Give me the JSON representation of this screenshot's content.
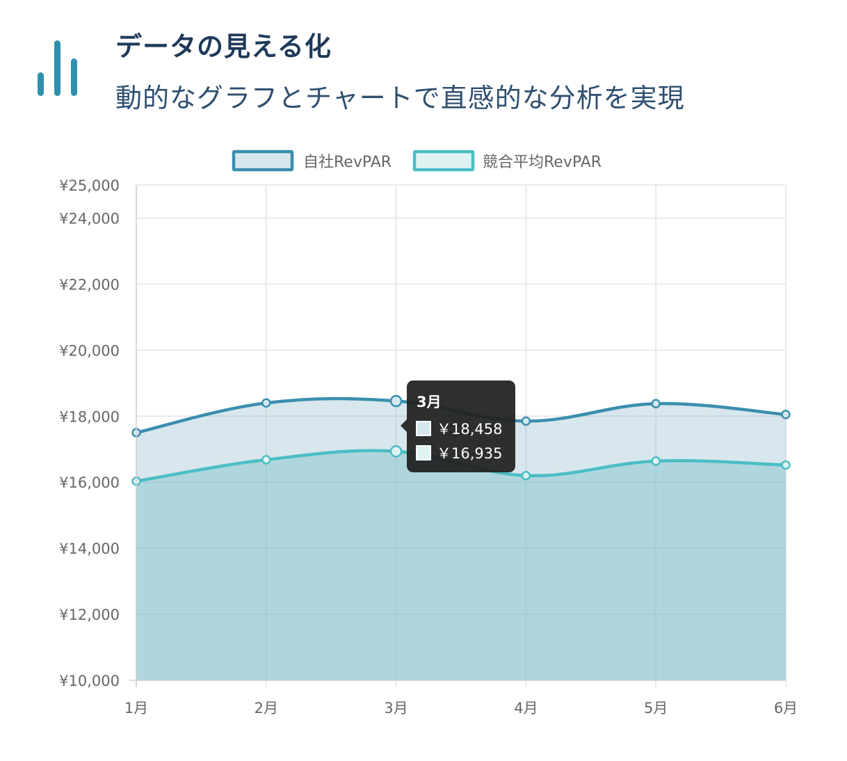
{
  "header": {
    "title": "データの見える化",
    "subtitle": "動的なグラフとチャートで直感的な分析を実現",
    "icon": "bar-chart-icon"
  },
  "colors": {
    "accent": "#2f8fae",
    "title": "#1f3a5a",
    "own_line": "#3a8fae",
    "competitor_line": "#4bbec4",
    "tooltip_bg": "#222222"
  },
  "chart_data": {
    "type": "area",
    "x": [
      "1月",
      "2月",
      "3月",
      "4月",
      "5月",
      "6月"
    ],
    "series": [
      {
        "name": "自社RevPAR",
        "values": [
          17500,
          18400,
          18458,
          17850,
          18380,
          18050
        ]
      },
      {
        "name": "競合平均RevPAR",
        "values": [
          16030,
          16680,
          16935,
          16200,
          16640,
          16520
        ]
      }
    ],
    "ylim": [
      10000,
      25000
    ],
    "yticks": [
      10000,
      12000,
      14000,
      16000,
      18000,
      20000,
      22000,
      24000,
      25000
    ],
    "ytick_labels": [
      "¥10,000",
      "¥12,000",
      "¥14,000",
      "¥16,000",
      "¥18,000",
      "¥20,000",
      "¥22,000",
      "¥24,000",
      "¥25,000"
    ],
    "grid": true,
    "legend": "top-center"
  },
  "tooltip": {
    "title": "3月",
    "rows": [
      "￥18,458",
      "￥16,935"
    ]
  }
}
